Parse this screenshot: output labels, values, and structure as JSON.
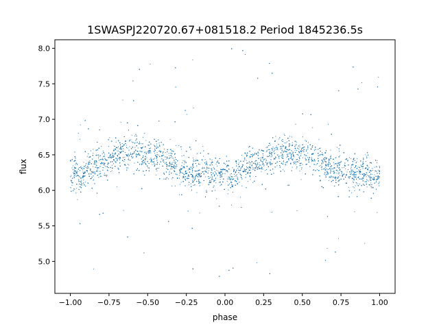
{
  "chart_data": {
    "type": "scatter",
    "title": "1SWASPJ220720.67+081518.2 Period 1845236.5s",
    "xlabel": "phase",
    "ylabel": "flux",
    "xlim": [
      -1.1,
      1.1
    ],
    "ylim": [
      4.55,
      8.12
    ],
    "xticks": [
      -1.0,
      -0.75,
      -0.5,
      -0.25,
      0.0,
      0.25,
      0.5,
      0.75,
      1.0
    ],
    "xtick_labels": [
      "−1.00",
      "−0.75",
      "−0.50",
      "−0.25",
      "0.00",
      "0.25",
      "0.50",
      "0.75",
      "1.00"
    ],
    "yticks": [
      5.0,
      5.5,
      6.0,
      6.5,
      7.0,
      7.5,
      8.0
    ],
    "ytick_labels": [
      "5.0",
      "5.5",
      "6.0",
      "6.5",
      "7.0",
      "7.5",
      "8.0"
    ],
    "grid": false,
    "legend": "none",
    "marker_color": "#1f77b4",
    "series": [
      {
        "x": [
          -1.0,
          -0.95,
          -0.9,
          -0.85,
          -0.8,
          -0.75,
          -0.7,
          -0.65,
          -0.6,
          -0.55,
          -0.5,
          -0.45,
          -0.4,
          -0.35,
          -0.3,
          -0.25,
          -0.2,
          -0.15,
          -0.1,
          -0.05,
          0.0,
          0.05,
          0.1,
          0.15,
          0.2,
          0.25,
          0.3,
          0.35,
          0.4,
          0.45,
          0.5,
          0.55,
          0.6,
          0.65,
          0.7,
          0.75,
          0.8,
          0.85,
          0.9,
          0.95,
          1.0
        ],
        "y": [
          6.25,
          6.2,
          6.3,
          6.35,
          6.4,
          6.4,
          6.5,
          6.55,
          6.55,
          6.5,
          6.5,
          6.5,
          6.4,
          6.35,
          6.3,
          6.3,
          6.25,
          6.25,
          6.25,
          6.2,
          6.25,
          6.2,
          6.3,
          6.35,
          6.4,
          6.4,
          6.5,
          6.55,
          6.55,
          6.5,
          6.5,
          6.5,
          6.4,
          6.35,
          6.3,
          6.3,
          6.25,
          6.25,
          6.25,
          6.2,
          6.25
        ]
      }
    ]
  }
}
